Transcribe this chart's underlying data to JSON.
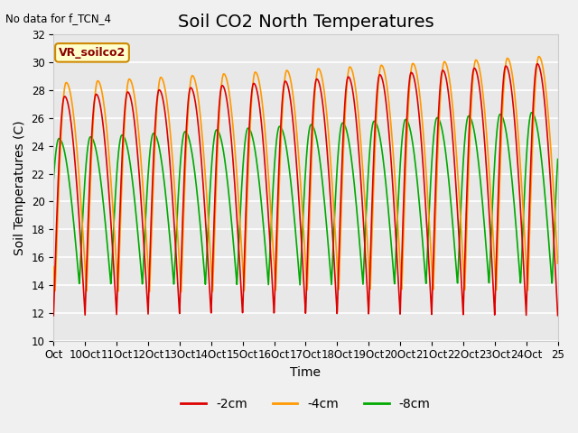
{
  "title": "Soil CO2 North Temperatures",
  "no_data_text": "No data for f_TCN_4",
  "legend_box_label": "VR_soilco2",
  "ylabel": "Soil Temperatures (C)",
  "xlabel": "Time",
  "ylim": [
    10,
    32
  ],
  "yticks": [
    10,
    12,
    14,
    16,
    18,
    20,
    22,
    24,
    26,
    28,
    30,
    32
  ],
  "xtick_positions": [
    0,
    1,
    2,
    3,
    4,
    5,
    6,
    7,
    8,
    9,
    10,
    11,
    12,
    13,
    14,
    15,
    16
  ],
  "xtick_labels": [
    "Oct",
    "10Oct",
    "11Oct",
    "12Oct",
    "13Oct",
    "14Oct",
    "15Oct",
    "16Oct",
    "17Oct",
    "18Oct",
    "19Oct",
    "20Oct",
    "21Oct",
    "22Oct",
    "23Oct",
    "24Oct",
    "25"
  ],
  "line_colors": [
    "#dd0000",
    "#ff9900",
    "#00aa00"
  ],
  "line_labels": [
    "-2cm",
    "-4cm",
    "-8cm"
  ],
  "bg_color": "#e8e8e8",
  "grid_color": "#ffffff",
  "n_points": 2000,
  "t_start": 0,
  "t_end": 16,
  "period": 1.0,
  "red_min": 11.8,
  "red_max_base": 27.5,
  "red_max_grow": 2.5,
  "orange_min": 13.5,
  "orange_max_base": 28.5,
  "orange_max_grow": 2.0,
  "green_min": 14.0,
  "green_max_base": 24.5,
  "green_max_grow": 2.0,
  "green_phase_shift": 0.18,
  "title_fontsize": 14,
  "label_fontsize": 10,
  "tick_fontsize": 8.5
}
